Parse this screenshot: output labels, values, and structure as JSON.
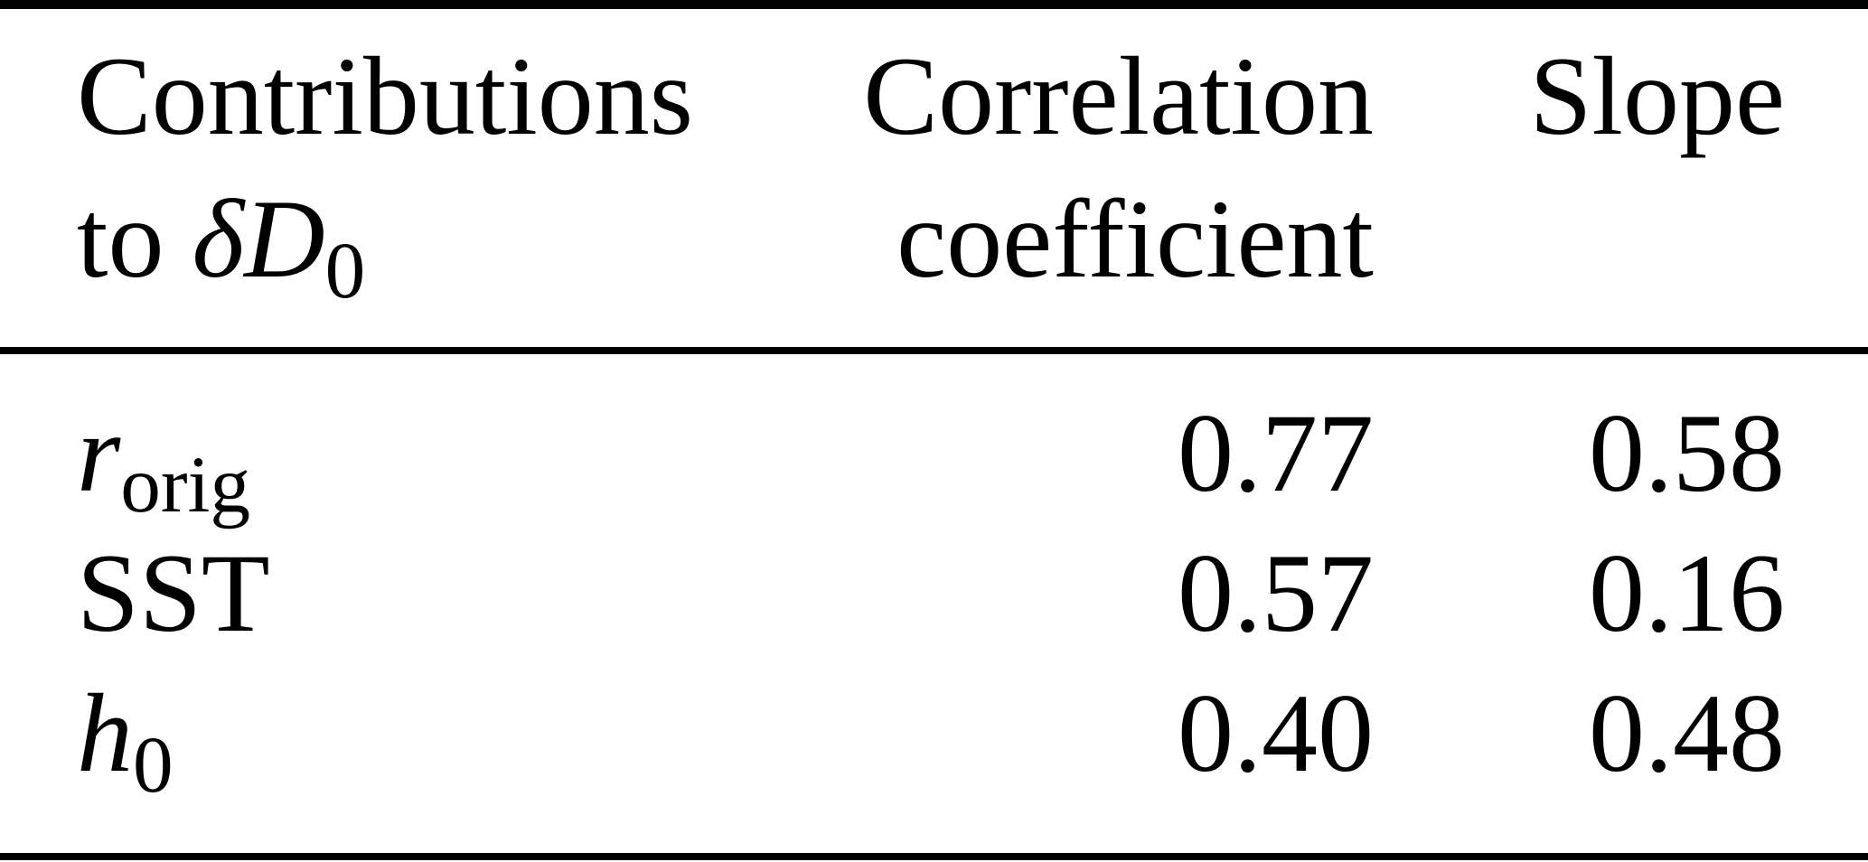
{
  "table": {
    "colors": {
      "text": "#000000",
      "background": "#ffffff",
      "rule": "#000000"
    },
    "header": {
      "col1_line1": "Contributions",
      "col1_line2_prefix": "to ",
      "col1_line2_symbol": "δD",
      "col1_line2_sub": "0",
      "col2_line1": "Correlation",
      "col2_line2": "coefficient",
      "col3_line1": "Slope"
    },
    "rows": [
      {
        "label": "r",
        "label_sub": "orig",
        "correlation": "0.77",
        "slope": "0.58"
      },
      {
        "label": "SST",
        "label_sub": "",
        "correlation": "0.57",
        "slope": "0.16"
      },
      {
        "label": "h",
        "label_sub": "0",
        "correlation": "0.40",
        "slope": "0.48"
      }
    ]
  }
}
